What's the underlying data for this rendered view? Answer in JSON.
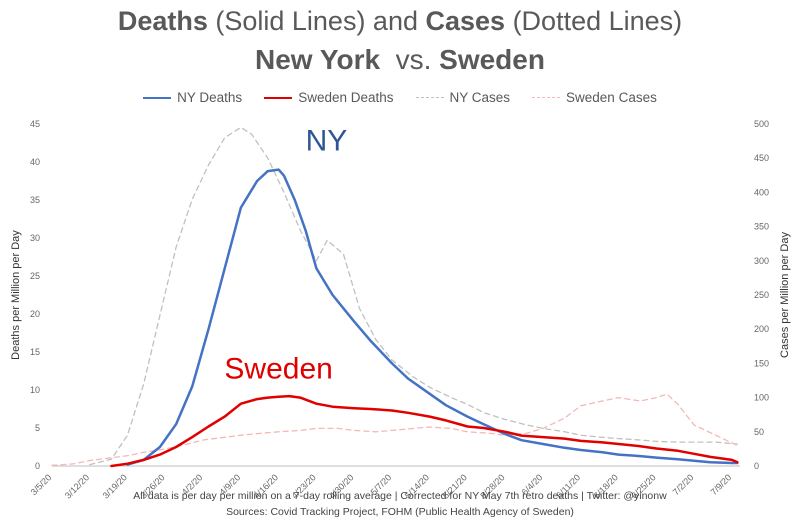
{
  "title": {
    "line1_a": "Deaths",
    "line1_b": " (Solid Lines) and ",
    "line1_c": "Cases",
    "line1_d": " (Dotted Lines)",
    "line2_a": "New York",
    "line2_b": "  vs. ",
    "line2_c": "Sweden"
  },
  "footer": {
    "line1": "All data is per day per million on a 7-day rolling average | Corrected for NY May 7th retro deaths | Twitter: @yinonw",
    "line2": "Sources: Covid Tracking Project, FOHM (Public Health Agency of Sweden)"
  },
  "colors": {
    "ny": "#4472C4",
    "sweden": "#E00000",
    "ny_cases": "#C0C0C0",
    "sweden_cases": "#F4B8B8"
  },
  "chart_data": {
    "type": "line",
    "ylabel": "Deaths per Million per Day",
    "y2label": "Cases per Million per Day",
    "ylim": [
      0,
      45
    ],
    "y2lim": [
      0,
      500
    ],
    "yticks": [
      0,
      5,
      10,
      15,
      20,
      25,
      30,
      35,
      40,
      45
    ],
    "y2ticks": [
      0,
      50,
      100,
      150,
      200,
      250,
      300,
      350,
      400,
      450,
      500
    ],
    "x_ticks": [
      "3/5/20",
      "3/12/20",
      "3/19/20",
      "3/26/20",
      "4/2/20",
      "4/9/20",
      "4/16/20",
      "4/23/20",
      "4/30/20",
      "5/7/20",
      "5/14/20",
      "5/21/20",
      "5/28/20",
      "6/4/20",
      "6/11/20",
      "6/18/20",
      "6/25/20",
      "7/2/20",
      "7/9/20"
    ],
    "annotations": [
      {
        "text": "NY",
        "x": "4/21/20",
        "y": 41.5,
        "color": "#2F5597"
      },
      {
        "text": "Sweden",
        "x": "4/16/20",
        "y": 11.5,
        "color": "#E00000"
      }
    ],
    "series": [
      {
        "name": "NY Deaths",
        "axis": "left",
        "style": "solid",
        "color": "#4472C4",
        "x": [
          "3/19/20",
          "3/22/20",
          "3/25/20",
          "3/28/20",
          "3/31/20",
          "4/3/20",
          "4/6/20",
          "4/9/20",
          "4/12/20",
          "4/14/20",
          "4/16/20",
          "4/17/20",
          "4/19/20",
          "4/21/20",
          "4/23/20",
          "4/26/20",
          "4/30/20",
          "5/3/20",
          "5/7/20",
          "5/10/20",
          "5/14/20",
          "5/17/20",
          "5/21/20",
          "5/24/20",
          "5/28/20",
          "5/31/20",
          "6/4/20",
          "6/8/20",
          "6/11/20",
          "6/15/20",
          "6/18/20",
          "6/22/20",
          "6/25/20",
          "6/29/20",
          "7/2/20",
          "7/5/20",
          "7/9/20",
          "7/10/20"
        ],
        "values": [
          0.2,
          0.8,
          2.5,
          5.5,
          10.5,
          18,
          26,
          34,
          37.5,
          38.8,
          39,
          38.2,
          35,
          31,
          26,
          22.5,
          19,
          16.5,
          13.5,
          11.5,
          9.5,
          8,
          6.5,
          5.5,
          4.2,
          3.4,
          2.9,
          2.4,
          2.1,
          1.8,
          1.5,
          1.3,
          1.1,
          0.9,
          0.7,
          0.5,
          0.4,
          0.4
        ]
      },
      {
        "name": "Sweden Deaths",
        "axis": "left",
        "style": "solid",
        "color": "#E00000",
        "x": [
          "3/16/20",
          "3/19/20",
          "3/22/20",
          "3/25/20",
          "3/28/20",
          "3/31/20",
          "4/3/20",
          "4/6/20",
          "4/9/20",
          "4/12/20",
          "4/14/20",
          "4/16/20",
          "4/18/20",
          "4/20/20",
          "4/23/20",
          "4/26/20",
          "4/30/20",
          "5/3/20",
          "5/7/20",
          "5/10/20",
          "5/14/20",
          "5/17/20",
          "5/21/20",
          "5/24/20",
          "5/28/20",
          "5/31/20",
          "6/4/20",
          "6/8/20",
          "6/11/20",
          "6/15/20",
          "6/18/20",
          "6/22/20",
          "6/25/20",
          "6/29/20",
          "7/2/20",
          "7/5/20",
          "7/9/20",
          "7/10/20"
        ],
        "values": [
          0,
          0.3,
          0.8,
          1.5,
          2.5,
          3.8,
          5.2,
          6.5,
          8.2,
          8.8,
          9,
          9.1,
          9.2,
          9,
          8.2,
          7.8,
          7.6,
          7.5,
          7.3,
          7,
          6.5,
          6,
          5.2,
          5,
          4.5,
          4,
          3.8,
          3.6,
          3.3,
          3.1,
          2.9,
          2.6,
          2.3,
          2,
          1.6,
          1.2,
          0.8,
          0.5
        ]
      },
      {
        "name": "NY Cases",
        "axis": "right",
        "style": "dotted",
        "color": "#C0C0C0",
        "x": [
          "3/12/20",
          "3/16/20",
          "3/19/20",
          "3/22/20",
          "3/25/20",
          "3/28/20",
          "3/31/20",
          "4/3/20",
          "4/6/20",
          "4/9/20",
          "4/11/20",
          "4/14/20",
          "4/17/20",
          "4/20/20",
          "4/23/20",
          "4/25/20",
          "4/28/20",
          "5/1/20",
          "5/4/20",
          "5/7/20",
          "5/11/20",
          "5/14/20",
          "5/18/20",
          "5/21/20",
          "5/24/20",
          "5/28/20",
          "6/1/20",
          "6/4/20",
          "6/8/20",
          "6/11/20",
          "6/15/20",
          "6/18/20",
          "6/22/20",
          "6/25/20",
          "6/29/20",
          "7/2/20",
          "7/6/20",
          "7/10/20"
        ],
        "values": [
          2,
          10,
          45,
          120,
          220,
          320,
          390,
          440,
          480,
          495,
          485,
          450,
          400,
          345,
          300,
          330,
          310,
          230,
          185,
          155,
          130,
          115,
          100,
          90,
          78,
          68,
          60,
          55,
          50,
          45,
          42,
          40,
          38,
          36,
          35,
          35,
          35,
          32
        ]
      },
      {
        "name": "Sweden Cases",
        "axis": "right",
        "style": "dotted",
        "color": "#F4B8B8",
        "x": [
          "3/5/20",
          "3/9/20",
          "3/12/20",
          "3/16/20",
          "3/19/20",
          "3/22/20",
          "3/26/20",
          "3/29/20",
          "4/2/20",
          "4/6/20",
          "4/9/20",
          "4/13/20",
          "4/16/20",
          "4/20/20",
          "4/23/20",
          "4/27/20",
          "4/30/20",
          "5/4/20",
          "5/7/20",
          "5/11/20",
          "5/14/20",
          "5/18/20",
          "5/21/20",
          "5/25/20",
          "5/28/20",
          "6/1/20",
          "6/4/20",
          "6/8/20",
          "6/11/20",
          "6/15/20",
          "6/18/20",
          "6/22/20",
          "6/25/20",
          "6/27/20",
          "6/29/20",
          "7/2/20",
          "7/6/20",
          "7/10/20"
        ],
        "values": [
          1,
          3,
          8,
          12,
          15,
          20,
          25,
          30,
          38,
          42,
          45,
          48,
          50,
          52,
          55,
          55,
          52,
          50,
          52,
          55,
          57,
          55,
          50,
          48,
          45,
          48,
          55,
          70,
          88,
          95,
          100,
          95,
          100,
          105,
          90,
          60,
          45,
          30
        ]
      }
    ]
  }
}
